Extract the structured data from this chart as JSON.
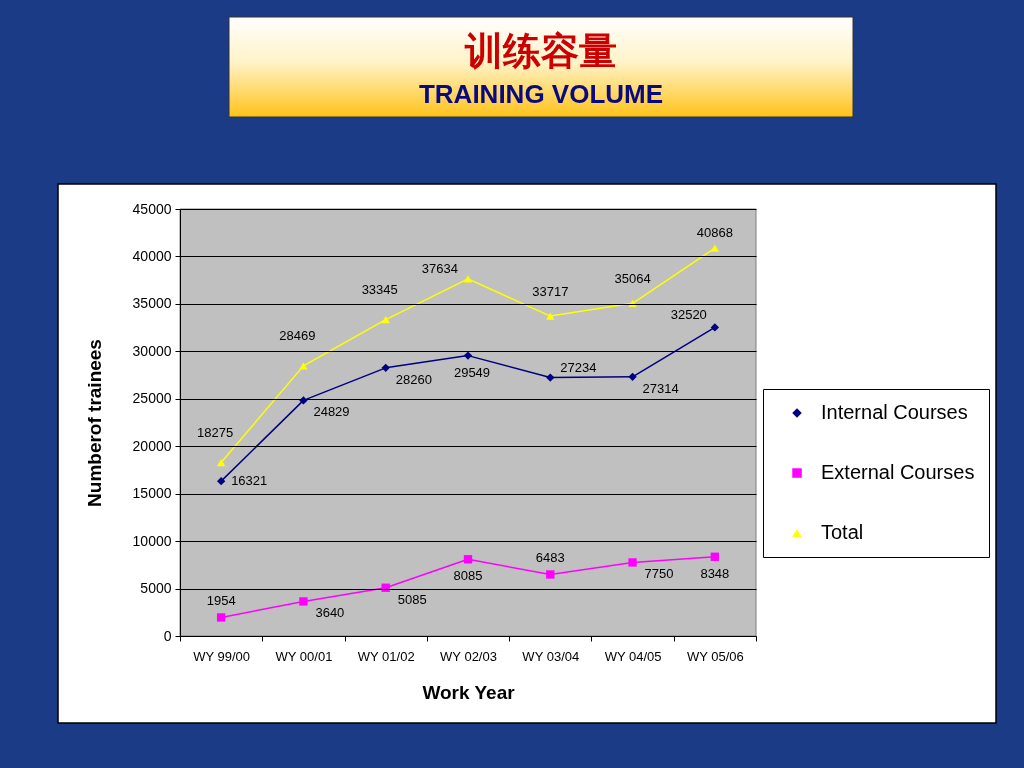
{
  "chart_data": {
    "type": "line",
    "title": "训练容量",
    "subtitle": "TRAINING VOLUME",
    "xlabel": "Work Year",
    "ylabel": "Numberof trainees",
    "categories": [
      "WY 99/00",
      "WY 00/01",
      "WY 01/02",
      "WY 02/03",
      "WY 03/04",
      "WY 04/05",
      "WY 05/06"
    ],
    "series": [
      {
        "name": "Internal Courses",
        "color": "#000080",
        "marker": "diamond",
        "values": [
          16321,
          24829,
          28260,
          29549,
          27234,
          27314,
          32520
        ]
      },
      {
        "name": "External Courses",
        "color": "#ff00ff",
        "marker": "square",
        "values": [
          1954,
          3640,
          5085,
          8085,
          6483,
          7750,
          8348
        ]
      },
      {
        "name": "Total",
        "color": "#ffff00",
        "marker": "triangle",
        "values": [
          18275,
          28469,
          33345,
          37634,
          33717,
          35064,
          40868
        ]
      }
    ],
    "ylim": [
      0,
      45000
    ],
    "yticks": [
      0,
      5000,
      10000,
      15000,
      20000,
      25000,
      30000,
      35000,
      40000,
      45000
    ],
    "grid": "y",
    "legend": "right",
    "data_labels": true
  }
}
